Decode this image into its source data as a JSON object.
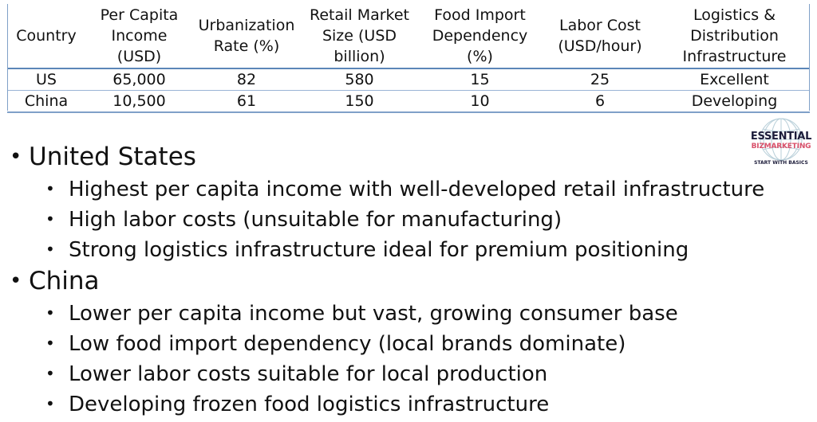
{
  "table": {
    "headers": [
      "Country",
      "Per Capita Income (USD)",
      "Urbanization Rate (%)",
      "Retail Market Size (USD billion)",
      "Food Import Dependency (%)",
      "Labor Cost (USD/hour)",
      "Logistics & Distribution Infrastructure"
    ],
    "rows": [
      [
        "US",
        "65,000",
        "82",
        "580",
        "15",
        "25",
        "Excellent"
      ],
      [
        "China",
        "10,500",
        "61",
        "150",
        "10",
        "6",
        "Developing"
      ]
    ]
  },
  "logo": {
    "line1": "ESSENTIAL",
    "line2": "BIZMARKETING",
    "tagline": "START WITH BASICS"
  },
  "bullets": [
    {
      "title": "United States",
      "items": [
        "Highest per capita income with well-developed retail infrastructure",
        "High labor costs (unsuitable for manufacturing)",
        "Strong logistics infrastructure ideal for premium positioning"
      ]
    },
    {
      "title": "China",
      "items": [
        "Lower per capita income but vast, growing consumer base",
        "Low food import dependency (local brands dominate)",
        "Lower labor costs suitable for local production",
        "Developing frozen food logistics infrastructure"
      ]
    }
  ],
  "bullet_glyph": "•"
}
